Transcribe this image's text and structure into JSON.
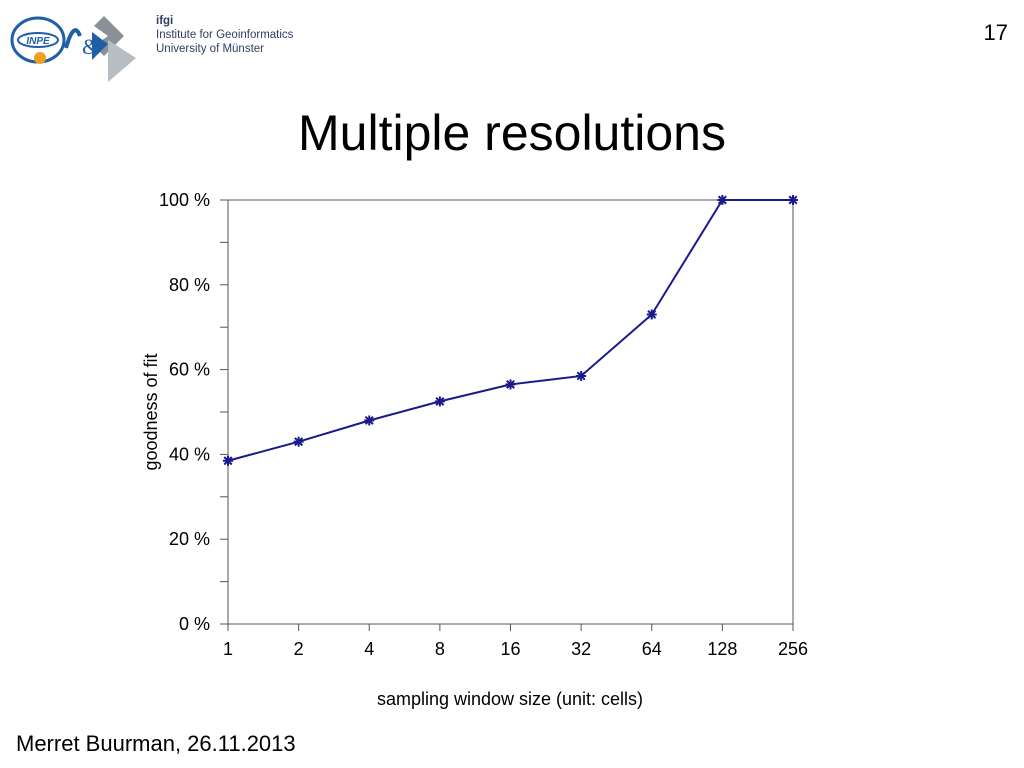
{
  "header": {
    "logo_left_text": "INPE",
    "logo_amp": "&",
    "ifgi_abbr": "ifgi",
    "ifgi_line1": "Institute for Geoinformatics",
    "ifgi_line2": "University of Münster",
    "slide_number": "17"
  },
  "slide": {
    "title": "Multiple resolutions",
    "footer": "Merret Buurman, 26.11.2013"
  },
  "colors": {
    "series": "#1a1a8c",
    "ifgi_text": "#2d3e5f",
    "logo_blue": "#1f5fa8",
    "logo_orange": "#f0a020"
  },
  "chart_data": {
    "type": "line",
    "title": "",
    "xlabel": "sampling window size (unit: cells)",
    "ylabel": "goodness of fit",
    "categories": [
      "1",
      "2",
      "4",
      "8",
      "16",
      "32",
      "64",
      "128",
      "256"
    ],
    "series": [
      {
        "values": [
          38.5,
          43,
          48,
          52.5,
          56.5,
          58.5,
          73,
          100,
          100
        ]
      }
    ],
    "ylim": [
      0,
      100
    ],
    "y_ticks": [
      0,
      20,
      40,
      60,
      80,
      100
    ],
    "y_tick_labels": [
      "0 %",
      "20 %",
      "40 %",
      "60 %",
      "80 %",
      "100 %"
    ],
    "y_minor_ticks": [
      10,
      30,
      50,
      70,
      90
    ],
    "marker": "asterisk",
    "grid": false,
    "legend": "none"
  }
}
